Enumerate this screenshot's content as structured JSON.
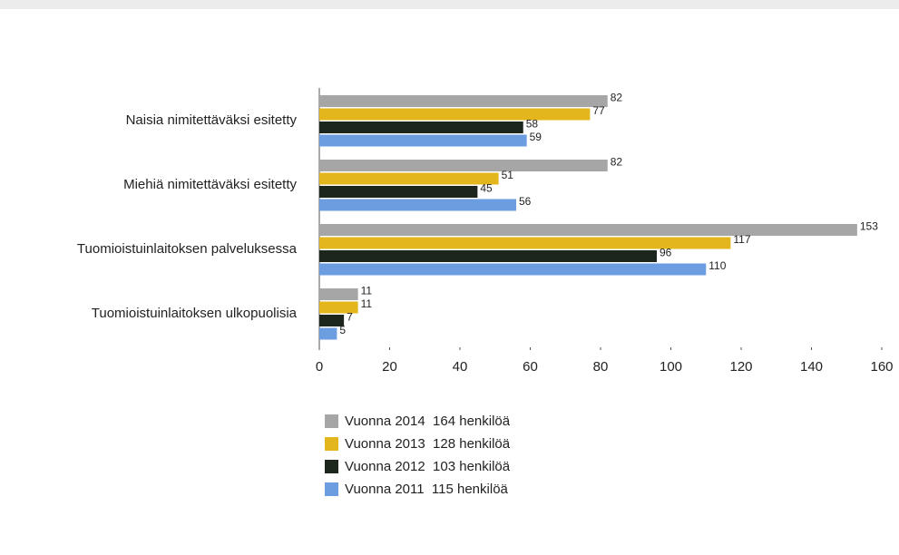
{
  "chart_data": {
    "type": "barh",
    "categories": [
      "Naisia nimitettäväksi esitetty",
      "Miehiä nimitettäväksi esitetty",
      "Tuomioistuinlaitoksen palveluksessa",
      "Tuomioistuinlaitoksen ulkopuolisia"
    ],
    "series": [
      {
        "name": "Vuonna 2014  164 henkilöä",
        "color": "#a6a6a6",
        "values": [
          82,
          82,
          153,
          11
        ]
      },
      {
        "name": "Vuonna 2013  128 henkilöä",
        "color": "#e3b61e",
        "values": [
          77,
          51,
          117,
          11
        ]
      },
      {
        "name": "Vuonna 2012  103 henkilöä",
        "color": "#1c261c",
        "values": [
          58,
          45,
          96,
          7
        ]
      },
      {
        "name": "Vuonna 2011  115 henkilöä",
        "color": "#6b9de0",
        "values": [
          59,
          56,
          110,
          5
        ]
      }
    ],
    "xlim": [
      0,
      160
    ],
    "xticks": [
      0,
      20,
      40,
      60,
      80,
      100,
      120,
      140,
      160
    ]
  }
}
